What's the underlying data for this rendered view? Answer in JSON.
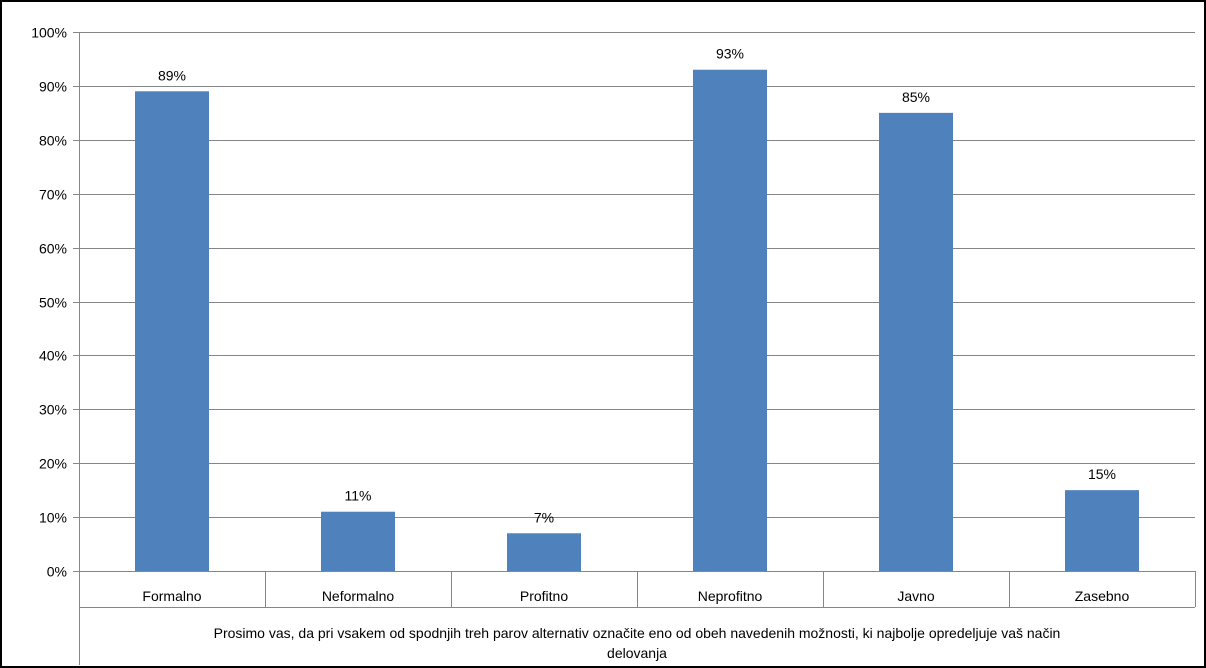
{
  "chart_data": {
    "type": "bar",
    "categories": [
      "Formalno",
      "Neformalno",
      "Profitno",
      "Neprofitno",
      "Javno",
      "Zasebno"
    ],
    "values": [
      89,
      11,
      7,
      93,
      85,
      15
    ],
    "data_labels": [
      "89%",
      "11%",
      "7%",
      "93%",
      "85%",
      "15%"
    ],
    "ylim": [
      0,
      100
    ],
    "yticks": [
      0,
      10,
      20,
      30,
      40,
      50,
      60,
      70,
      80,
      90,
      100
    ],
    "ytick_labels": [
      "0%",
      "10%",
      "20%",
      "30%",
      "40%",
      "50%",
      "60%",
      "70%",
      "80%",
      "90%",
      "100%"
    ],
    "xlabel_lines": [
      "Prosimo vas, da pri vsakem od spodnjih treh parov alternativ označite eno od obeh navedenih možnosti, ki najbolje opredeljuje vaš način",
      "delovanja"
    ],
    "grid": true,
    "bar_color": "#4f81bd",
    "gridline_color": "#868686",
    "axis_color": "#868686"
  }
}
